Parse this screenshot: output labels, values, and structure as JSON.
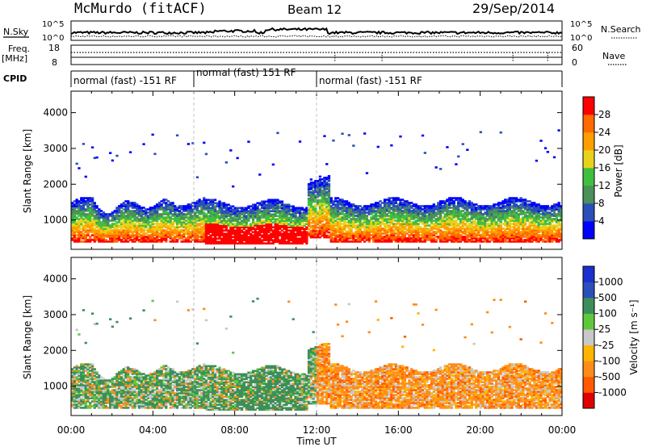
{
  "header": {
    "station": "McMurdo (fitACF)",
    "beam": "Beam 12",
    "date": "29/Sep/2014"
  },
  "nsky_panel": {
    "left_label": "N.Sky",
    "right_label": "N.Search",
    "left_ticks": [
      "10^5",
      "10^0"
    ],
    "right_ticks": [
      "10^5",
      "10^0"
    ]
  },
  "freq_panel": {
    "left_label_line1": "Freq.",
    "left_label_line2": "[MHz]",
    "right_label": "Nave",
    "left_ticks": [
      "18",
      "8"
    ],
    "right_ticks": [
      "60",
      "0"
    ]
  },
  "cpid": {
    "label": "CPID",
    "segments": [
      {
        "label": "normal (fast) -151 RF",
        "start_hour": 0,
        "end_hour": 6
      },
      {
        "label": "normal (fast) 151 RF",
        "start_hour": 6,
        "end_hour": 12
      },
      {
        "label": "normal (fast) -151 RF",
        "start_hour": 12,
        "end_hour": 24
      }
    ]
  },
  "chart_data": [
    {
      "type": "heatmap",
      "ylabel": "Slant Range [km]",
      "xlim": [
        0,
        24
      ],
      "ylim": [
        180,
        4600
      ],
      "yticks": [
        "1000",
        "2000",
        "3000",
        "4000"
      ],
      "colorbar_label": "Power [dB]",
      "colorbar_ticks": [
        "28",
        "24",
        "20",
        "16",
        "12",
        "8",
        "4"
      ],
      "colors": [
        "#0000ff",
        "#2a4fb8",
        "#4b8f5a",
        "#3fbf3f",
        "#e8d21c",
        "#ff9e00",
        "#ff6a00",
        "#ff0000"
      ]
    },
    {
      "type": "heatmap",
      "ylabel": "Slant Range [km]",
      "xlabel": "Time UT",
      "xlim": [
        0,
        24
      ],
      "ylim": [
        180,
        4600
      ],
      "xticks": [
        "00:00",
        "04:00",
        "08:00",
        "12:00",
        "16:00",
        "20:00",
        "00:00"
      ],
      "yticks": [
        "1000",
        "2000",
        "3000",
        "4000"
      ],
      "colorbar_label": "Velocity [m s⁻¹]",
      "colorbar_ticks": [
        "1000",
        "500",
        "100",
        "25",
        "-25",
        "-100",
        "-500",
        "-1000"
      ],
      "colors": [
        "#e00000",
        "#ff5a00",
        "#ff8c1a",
        "#ffb400",
        "#c8c8c8",
        "#5ec83c",
        "#3d8f5a",
        "#2a4fb8",
        "#1a2fd0"
      ]
    }
  ]
}
